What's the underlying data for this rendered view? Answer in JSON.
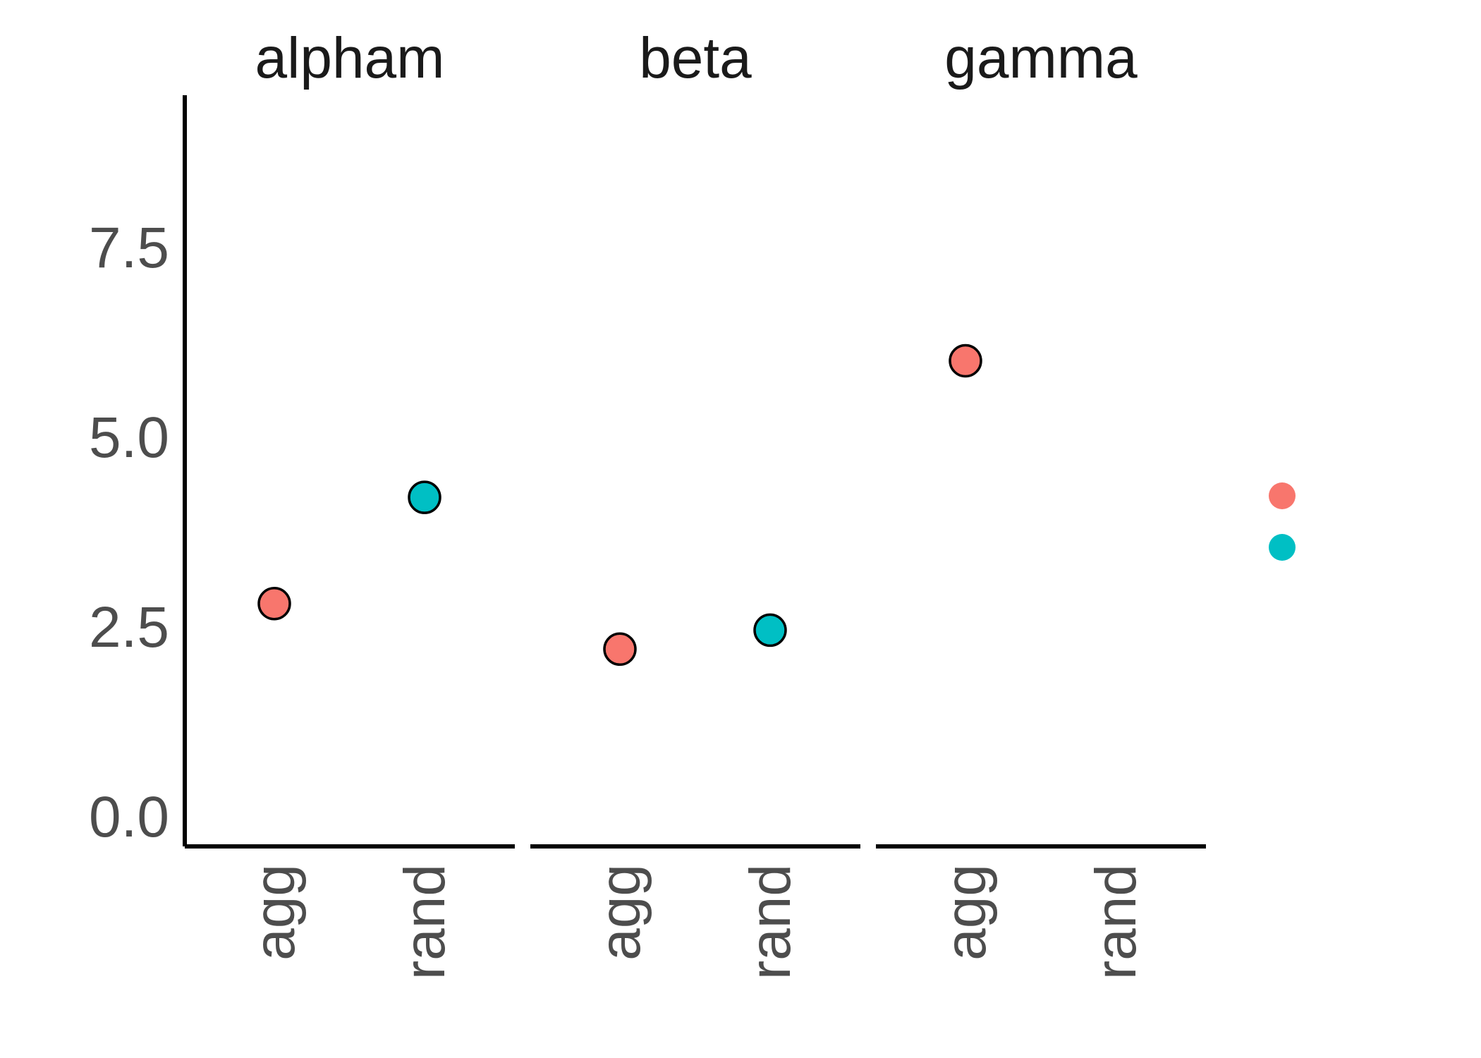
{
  "chart_data": {
    "type": "scatter",
    "title": "",
    "xlabel": "",
    "ylabel": "",
    "facets": [
      "alpham",
      "beta",
      "gamma"
    ],
    "categories": [
      "agg",
      "rand"
    ],
    "ylim": [
      -0.4,
      9.5
    ],
    "y_ticks": [
      "0.0",
      "2.5",
      "5.0",
      "7.5"
    ],
    "grid": false,
    "legend": {
      "position": "right",
      "entries": [
        {
          "label": "",
          "color": "#F8766D"
        },
        {
          "label": "",
          "color": "#00BFC4"
        }
      ]
    },
    "series": [
      {
        "values": [
          {
            "facet": "alpham",
            "x": "agg",
            "y": 2.8
          },
          {
            "facet": "beta",
            "x": "agg",
            "y": 2.2
          },
          {
            "facet": "gamma",
            "x": "agg",
            "y": 6.0
          }
        ],
        "color": "#F8766D"
      },
      {
        "values": [
          {
            "facet": "alpham",
            "x": "rand",
            "y": 4.2
          },
          {
            "facet": "beta",
            "x": "rand",
            "y": 2.45
          }
        ],
        "color": "#00BFC4"
      }
    ]
  }
}
